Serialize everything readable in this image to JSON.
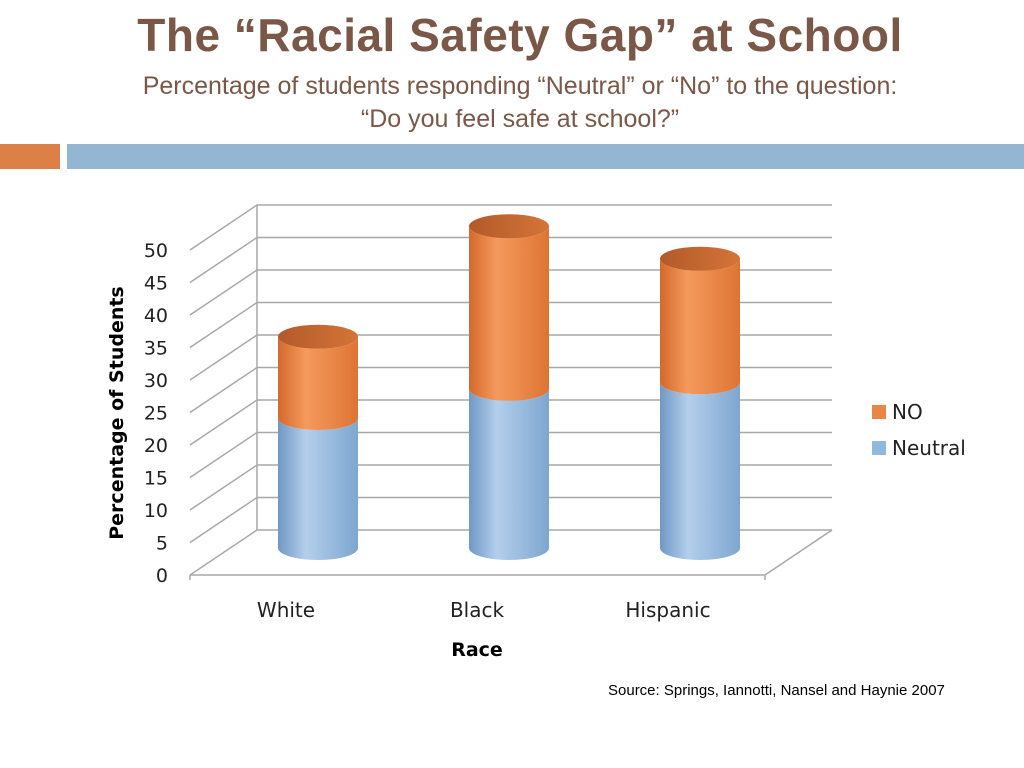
{
  "slide": {
    "title": "The “Racial Safety Gap” at School",
    "subtitle_line1": "Percentage of students responding “Neutral” or “No” to the question:",
    "subtitle_line2": "“Do you feel safe at school?”",
    "source": "Source: Springs, Iannotti, Nansel and Haynie 2007",
    "colors": {
      "title": "#7a5747",
      "accent_orange": "#dd8047",
      "accent_blue": "#94b6d2"
    }
  },
  "chart_data": {
    "type": "bar",
    "stacked": true,
    "three_d": true,
    "categories": [
      "White",
      "Black",
      "Hispanic"
    ],
    "series": [
      {
        "name": "Neutral",
        "values": [
          20,
          24.5,
          25.5
        ],
        "color": "#92b8dd"
      },
      {
        "name": "NO",
        "values": [
          12.5,
          25,
          19
        ],
        "color": "#ea8645"
      }
    ],
    "xlabel": "Race",
    "ylabel": "Percentage of Students",
    "ylim": [
      0,
      50
    ],
    "yticks": [
      0,
      5,
      10,
      15,
      20,
      25,
      30,
      35,
      40,
      45,
      50
    ],
    "grid": true,
    "legend": "right"
  }
}
